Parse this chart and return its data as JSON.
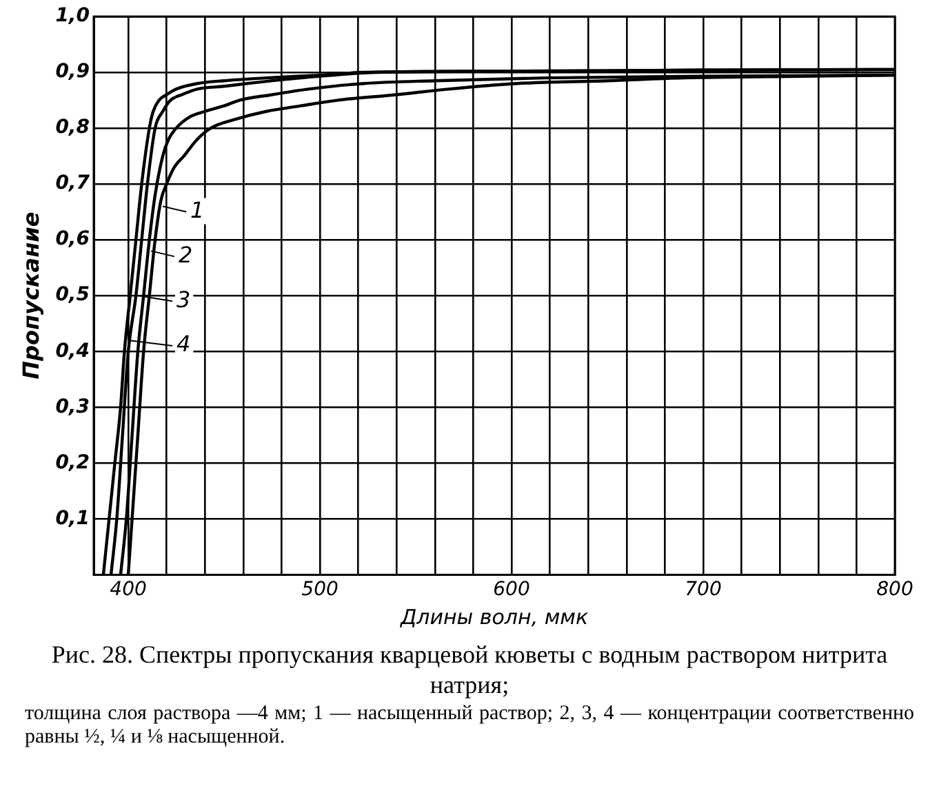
{
  "chart_data": {
    "type": "line",
    "title": "Рис. 28. Спектры пропускания кварцевой кюветы с водным раствором нитрита натрия;",
    "subtitle": "толщина слоя раствора —4 мм; 1 — насыщенный раствор; 2, 3, 4 — концентрации соответственно равны ½, ¼ и ⅛ насыщенной.",
    "xlabel": "Длины волн, ммк",
    "ylabel": "Пропускание",
    "series": [
      {
        "name": "1",
        "color": "#000000",
        "x": [
          400,
          402,
          405,
          408,
          411,
          414,
          417,
          420,
          424,
          429,
          436,
          443,
          455,
          472,
          490,
          509,
          540,
          567,
          603,
          650,
          690,
          750,
          800
        ],
        "values": [
          0,
          0.1,
          0.25,
          0.4,
          0.5,
          0.6,
          0.67,
          0.7,
          0.73,
          0.75,
          0.78,
          0.8,
          0.815,
          0.83,
          0.84,
          0.85,
          0.86,
          0.87,
          0.88,
          0.885,
          0.89,
          0.893,
          0.895
        ]
      },
      {
        "name": "2",
        "color": "#000000",
        "x": [
          396,
          399,
          402,
          405,
          408,
          411,
          414,
          418,
          421,
          425,
          432,
          440,
          450,
          458,
          475,
          494,
          523,
          560,
          617,
          700,
          800
        ],
        "values": [
          0,
          0.1,
          0.25,
          0.4,
          0.5,
          0.6,
          0.68,
          0.75,
          0.78,
          0.8,
          0.82,
          0.83,
          0.84,
          0.85,
          0.86,
          0.87,
          0.88,
          0.885,
          0.89,
          0.893,
          0.895
        ]
      },
      {
        "name": "3",
        "color": "#000000",
        "x": [
          391,
          394,
          397,
          400,
          404,
          407,
          410,
          414,
          418,
          422,
          428,
          436,
          450,
          462,
          490,
          530,
          600,
          700,
          800
        ],
        "values": [
          0,
          0.1,
          0.25,
          0.4,
          0.5,
          0.6,
          0.7,
          0.8,
          0.83,
          0.85,
          0.86,
          0.87,
          0.875,
          0.88,
          0.89,
          0.9,
          0.902,
          0.904,
          0.905
        ]
      },
      {
        "name": "4",
        "color": "#000000",
        "x": [
          387,
          390,
          393,
          396,
          398,
          401,
          404,
          407,
          411,
          413,
          416,
          420,
          425,
          436,
          450,
          472,
          500,
          523,
          600,
          700,
          800
        ],
        "values": [
          0,
          0.1,
          0.2,
          0.3,
          0.4,
          0.5,
          0.6,
          0.7,
          0.8,
          0.83,
          0.85,
          0.86,
          0.87,
          0.88,
          0.885,
          0.89,
          0.895,
          0.9,
          0.902,
          0.904,
          0.905
        ]
      }
    ],
    "xlim": [
      382,
      800
    ],
    "xticks": [
      400,
      {
        "value": 420,
        "label": null
      },
      {
        "value": 440,
        "label": null
      },
      {
        "value": 460,
        "label": null
      },
      {
        "value": 480,
        "label": null
      },
      500,
      {
        "value": 520,
        "label": null
      },
      {
        "value": 540,
        "label": null
      },
      {
        "value": 560,
        "label": null
      },
      {
        "value": 580,
        "label": null
      },
      600,
      {
        "value": 620,
        "label": null
      },
      {
        "value": 640,
        "label": null
      },
      {
        "value": 660,
        "label": null
      },
      {
        "value": 680,
        "label": null
      },
      700,
      {
        "value": 720,
        "label": null
      },
      {
        "value": 740,
        "label": null
      },
      {
        "value": 760,
        "label": null
      },
      {
        "value": 780,
        "label": null
      },
      800
    ],
    "ylim": [
      0,
      1
    ],
    "yticks": [
      {
        "value": 0.1,
        "label": "0,1"
      },
      {
        "value": 0.2,
        "label": "0,2"
      },
      {
        "value": 0.3,
        "label": "0,3"
      },
      {
        "value": 0.4,
        "label": "0,4"
      },
      {
        "value": 0.5,
        "label": "0,5"
      },
      {
        "value": 0.6,
        "label": "0,6"
      },
      {
        "value": 0.7,
        "label": "0,7"
      },
      {
        "value": 0.8,
        "label": "0,8"
      },
      {
        "value": 0.9,
        "label": "0,9"
      },
      {
        "value": 1.0,
        "label": "1,0"
      }
    ],
    "grid": true,
    "legend": "left",
    "marker": "none",
    "line_style": "solid"
  }
}
